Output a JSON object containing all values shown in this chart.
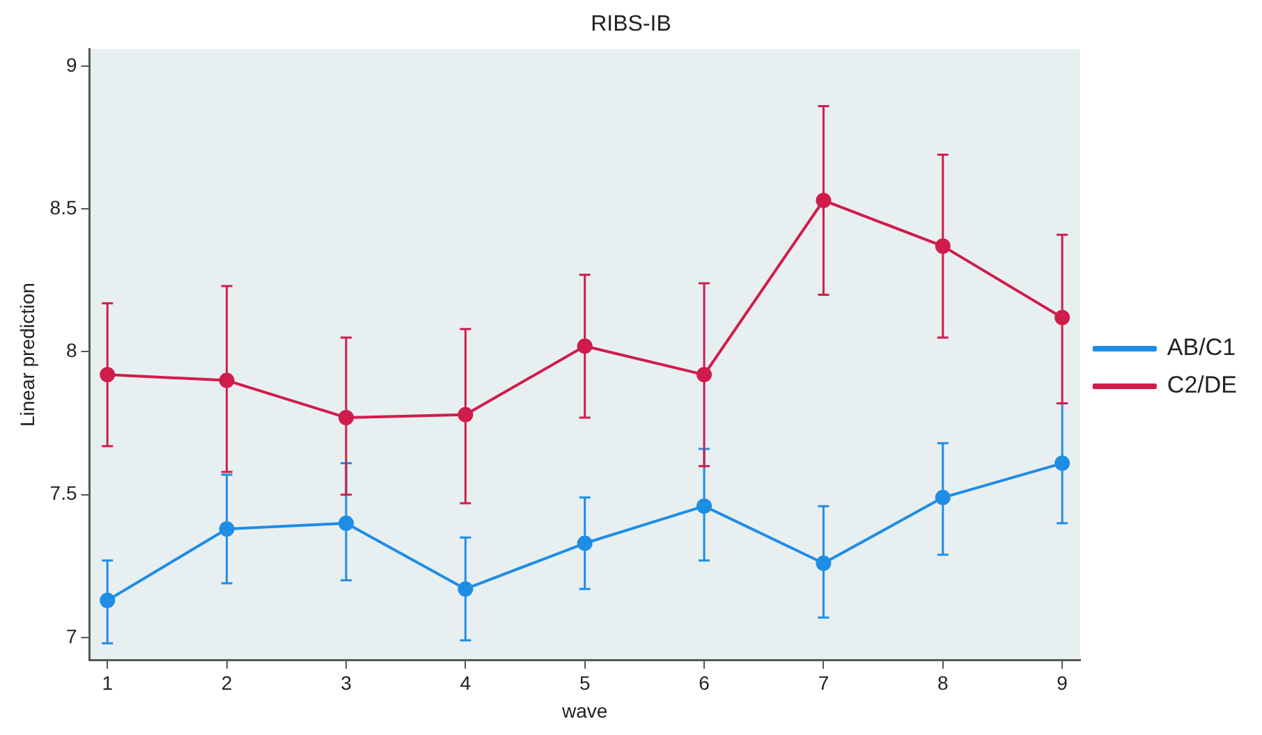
{
  "chart_data": {
    "type": "line",
    "title": "RIBS-IB",
    "xlabel": "wave",
    "ylabel": "Linear prediction",
    "x": [
      1,
      2,
      3,
      4,
      5,
      6,
      7,
      8,
      9
    ],
    "series": [
      {
        "name": "AB/C1",
        "color": "#1e8de6",
        "values": [
          7.13,
          7.38,
          7.4,
          7.17,
          7.33,
          7.46,
          7.26,
          7.49,
          7.61
        ],
        "errors": [
          [
            6.98,
            7.27
          ],
          [
            7.19,
            7.57
          ],
          [
            7.2,
            7.61
          ],
          [
            6.99,
            7.35
          ],
          [
            7.17,
            7.49
          ],
          [
            7.27,
            7.66
          ],
          [
            7.07,
            7.46
          ],
          [
            7.29,
            7.68
          ],
          [
            7.4,
            7.82
          ]
        ]
      },
      {
        "name": "C2/DE",
        "color": "#d01c4b",
        "values": [
          7.92,
          7.9,
          7.77,
          7.78,
          8.02,
          7.92,
          8.53,
          8.37,
          8.12
        ],
        "errors": [
          [
            7.67,
            8.17
          ],
          [
            7.58,
            8.23
          ],
          [
            7.5,
            8.05
          ],
          [
            7.47,
            8.08
          ],
          [
            7.77,
            8.27
          ],
          [
            7.6,
            8.24
          ],
          [
            8.2,
            8.86
          ],
          [
            8.05,
            8.69
          ],
          [
            7.82,
            8.41
          ]
        ]
      }
    ],
    "xlim": [
      0.85,
      9.15
    ],
    "xticks": [
      1,
      2,
      3,
      4,
      5,
      6,
      7,
      8,
      9
    ],
    "ylim": [
      6.92,
      9.06
    ],
    "yticks": [
      7,
      7.5,
      8,
      8.5,
      9
    ],
    "grid": false,
    "legend": "right",
    "marker": "circle",
    "line_style": "solid"
  }
}
